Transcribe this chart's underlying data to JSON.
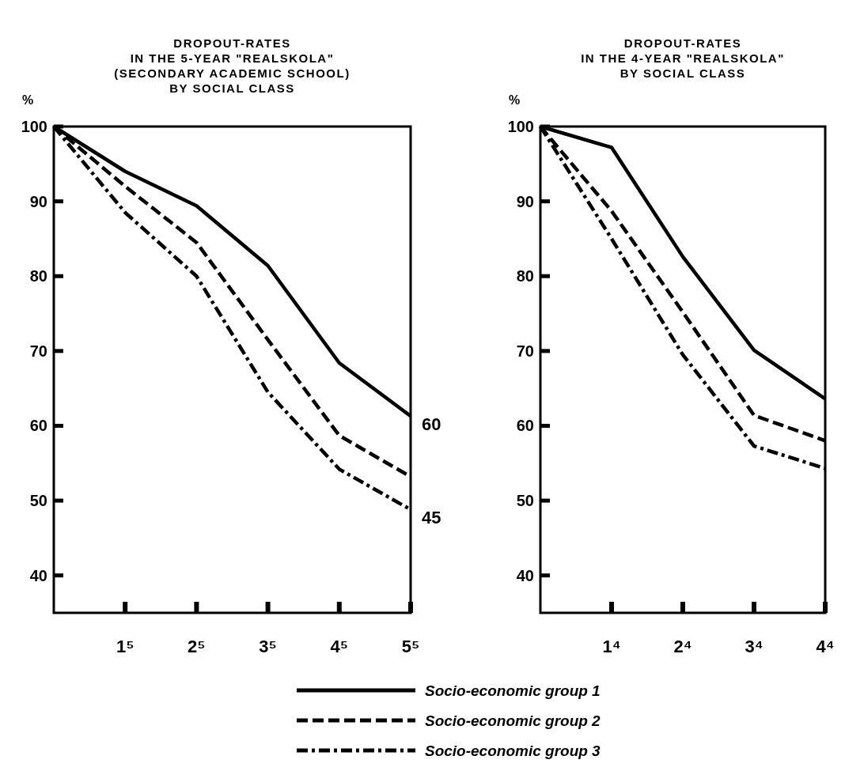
{
  "chart_data": [
    {
      "type": "line",
      "title": "DROPOUT-RATES\nIN THE 5-YEAR \"REALSKOLA\"\n(SECONDARY ACADEMIC SCHOOL)\nBY SOCIAL CLASS",
      "ylabel": "%",
      "categories": [
        null,
        "1⁵",
        "2⁵",
        "3⁵",
        "4⁵",
        "5⁵"
      ],
      "ylim": [
        35,
        100
      ],
      "yticks": [
        40,
        50,
        60,
        70,
        80,
        90,
        100
      ],
      "grid": false,
      "legend": "bottom",
      "marker": "none",
      "series": [
        {
          "name": "Socio-economic group 1",
          "color": "#000000",
          "line_style": "solid",
          "values": [
            100,
            94,
            89.4,
            81.4,
            68.4,
            61.3
          ]
        },
        {
          "name": "Socio-economic group 2",
          "color": "#000000",
          "line_style": "dashed",
          "values": [
            100,
            92,
            84.5,
            71.5,
            58.7,
            53.2
          ]
        },
        {
          "name": "Socio-economic group 3",
          "color": "#000000",
          "line_style": "dashdot",
          "values": [
            100,
            88.5,
            80,
            64.5,
            54.2,
            48.8
          ]
        }
      ],
      "annotations": [
        "60",
        "45"
      ]
    },
    {
      "type": "line",
      "title": "DROPOUT-RATES\nIN THE 4-YEAR \"REALSKOLA\"\nBY SOCIAL CLASS",
      "ylabel": "%",
      "categories": [
        null,
        "1⁴",
        "2⁴",
        "3⁴",
        "4⁴"
      ],
      "ylim": [
        35,
        100
      ],
      "yticks": [
        40,
        50,
        60,
        70,
        80,
        90,
        100
      ],
      "grid": false,
      "marker": "none",
      "series": [
        {
          "color": "#000000",
          "line_style": "solid",
          "values": [
            100,
            97.2,
            82.6,
            70.1,
            63.6
          ]
        },
        {
          "color": "#000000",
          "line_style": "dashed",
          "values": [
            100,
            88.7,
            75.2,
            61.4,
            58
          ]
        },
        {
          "color": "#000000",
          "line_style": "dashdot",
          "values": [
            100,
            85,
            69.5,
            57.3,
            54.3
          ]
        }
      ]
    }
  ]
}
